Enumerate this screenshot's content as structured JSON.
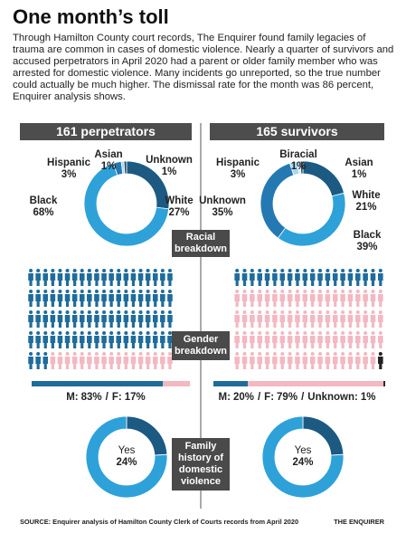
{
  "title": "One month’s toll",
  "intro": "Through Hamilton County court records, The Enquirer found family legacies of trauma are common in cases of domestic violence. Nearly a quarter of survivors and accused perpetrators in April 2020 had a parent or older family member who was arrested for domestic violence. Many incidents go unreported, so the true number could actually be much higher. The dismissal rate for the month was 86 percent, Enquirer analysis shows.",
  "columns": [
    "161 perpetrators",
    "165 survivors"
  ],
  "sections": [
    "Racial breakdown",
    "Gender breakdown",
    "Family history of domestic violence"
  ],
  "source": "SOURCE: Enquirer analysis of Hamilton County Clerk of Courts records from April 2020",
  "credit": "THE ENQUIRER",
  "chart_data": [
    {
      "type": "pie",
      "categories": [
        "White",
        "Black",
        "Hispanic",
        "Asian",
        "Unknown"
      ],
      "values": [
        27,
        68,
        3,
        1,
        1
      ],
      "value_labels": [
        "27%",
        "68%",
        "3%",
        "1%",
        "1%"
      ],
      "colors": [
        "#1c5a82",
        "#2ea1d9",
        "#2479b3",
        "#a8d6ef",
        "#1b4a6b"
      ]
    },
    {
      "type": "pie",
      "categories": [
        "White",
        "Black",
        "Unknown",
        "Hispanic",
        "Biracial",
        "Asian"
      ],
      "values": [
        21,
        39,
        35,
        3,
        1,
        1
      ],
      "value_labels": [
        "21%",
        "39%",
        "35%",
        "3%",
        "1%",
        "1%"
      ],
      "colors": [
        "#1c5a82",
        "#2ea1d9",
        "#2479b3",
        "#a8d6ef",
        "#d6ecf8",
        "#1b4a6b"
      ]
    },
    {
      "type": "pictogram",
      "categories": [
        "M:",
        "F:"
      ],
      "values": [
        83,
        17
      ],
      "value_labels": [
        "83%",
        "17%"
      ],
      "separator": "/",
      "colors": [
        "#1f6c9c",
        "#f3b8c2"
      ]
    },
    {
      "type": "pictogram",
      "categories": [
        "M:",
        "F:",
        "Unknown:"
      ],
      "values": [
        20,
        79,
        1
      ],
      "value_labels": [
        "20%",
        "79%",
        "1%"
      ],
      "separator": "/",
      "colors": [
        "#1f6c9c",
        "#f3b8c2",
        "#222222"
      ]
    },
    {
      "type": "pie",
      "categories": [
        "Yes",
        null
      ],
      "values": [
        24,
        76
      ],
      "value_labels": [
        "24%",
        null
      ],
      "colors": [
        "#1c5a82",
        "#2ea1d9"
      ]
    },
    {
      "type": "pie",
      "categories": [
        "Yes",
        null
      ],
      "values": [
        24,
        76
      ],
      "value_labels": [
        "24%",
        null
      ],
      "colors": [
        "#1c5a82",
        "#2ea1d9"
      ]
    }
  ]
}
